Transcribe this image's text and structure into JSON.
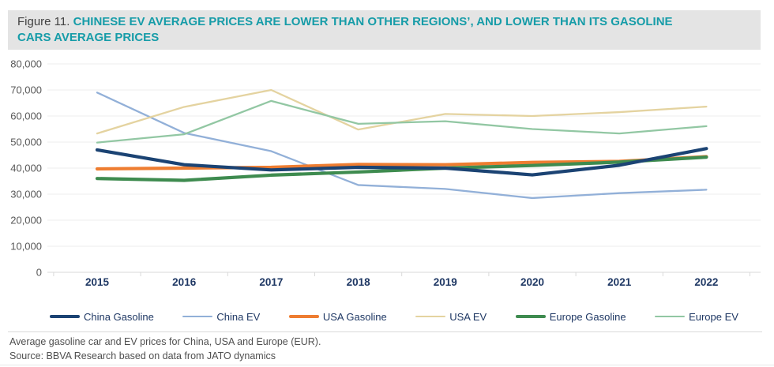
{
  "figure": {
    "label": "Figure 11.",
    "title": "CHINESE EV AVERAGE PRICES ARE LOWER THAN OTHER REGIONS’, AND LOWER THAN ITS GASOLINE CARS AVERAGE PRICES",
    "title_color": "#169ca8",
    "label_color": "#414141",
    "band_color": "#e4e4e4"
  },
  "chart_data": {
    "type": "line",
    "title": "Average gasoline car and EV prices for China, USA and Europe (EUR)",
    "categories": [
      "2015",
      "2016",
      "2017",
      "2018",
      "2019",
      "2020",
      "2021",
      "2022"
    ],
    "series": [
      {
        "name": "China Gasoline",
        "color": "#1b4373",
        "line_weight": "thick",
        "values": [
          47000,
          41300,
          39300,
          40300,
          40000,
          37400,
          41100,
          47500
        ]
      },
      {
        "name": "China EV",
        "color": "#92b0d8",
        "line_weight": "thin",
        "values": [
          69000,
          53500,
          46500,
          33500,
          32000,
          28500,
          30400,
          31700
        ]
      },
      {
        "name": "USA Gasoline",
        "color": "#ee7d31",
        "line_weight": "thick",
        "values": [
          39700,
          40000,
          40300,
          41400,
          41300,
          42200,
          42600,
          44400
        ]
      },
      {
        "name": "USA EV",
        "color": "#e4d3a0",
        "line_weight": "thin",
        "values": [
          53300,
          63500,
          70000,
          54800,
          60800,
          60000,
          61500,
          63600
        ]
      },
      {
        "name": "Europe Gasoline",
        "color": "#3e8b4f",
        "line_weight": "thick",
        "values": [
          36000,
          35300,
          37300,
          38500,
          40000,
          41000,
          42300,
          44200
        ]
      },
      {
        "name": "Europe EV",
        "color": "#92c7a3",
        "line_weight": "thin",
        "values": [
          49800,
          53000,
          65800,
          57000,
          58000,
          55000,
          53300,
          56100
        ]
      }
    ],
    "xlabel": "",
    "ylabel": "",
    "ylim": [
      0,
      80000
    ],
    "yticks": [
      0,
      10000,
      20000,
      30000,
      40000,
      50000,
      60000,
      70000,
      80000
    ],
    "grid": true,
    "legend_position": "bottom",
    "axis_text_color_y": "#595959",
    "axis_text_color_x": "#1f3864",
    "grid_color": "#ececec",
    "axis_line_color": "#d9d9d9"
  },
  "footer": {
    "caption": "Average gasoline car and EV prices for China, USA and Europe (EUR).",
    "source": "Source: BBVA Research based on data from JATO dynamics"
  }
}
